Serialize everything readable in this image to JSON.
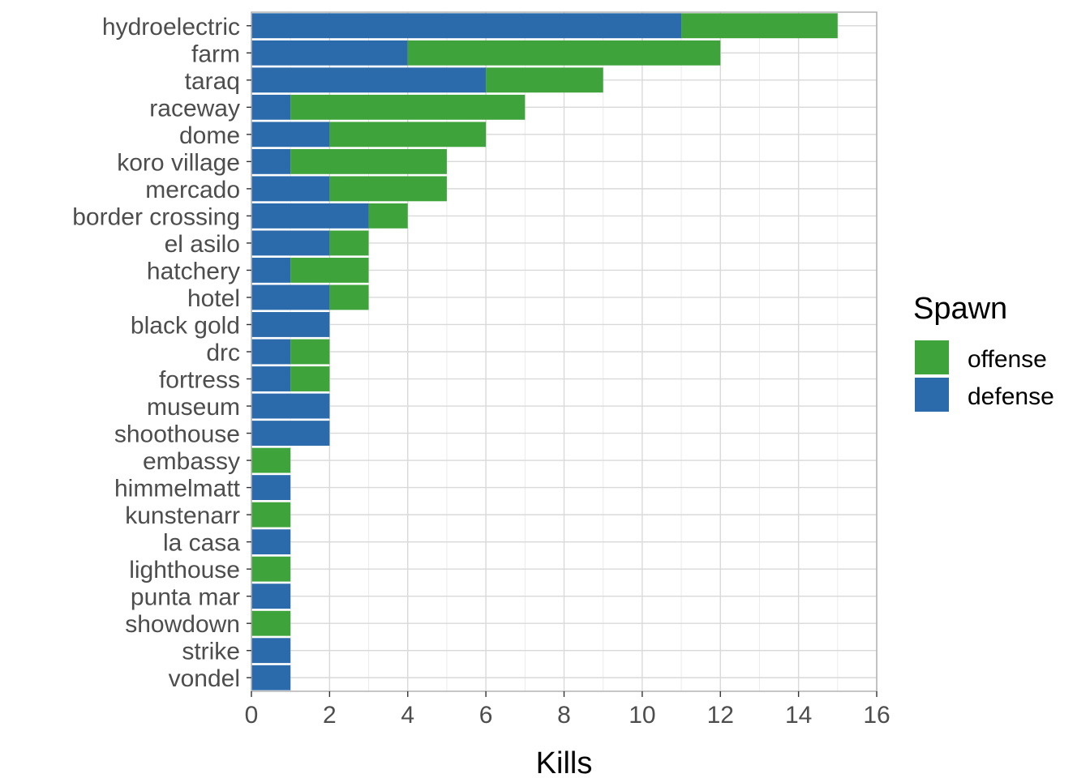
{
  "chart_data": {
    "type": "bar",
    "orientation": "horizontal",
    "stacked": true,
    "categories": [
      "hydroelectric",
      "farm",
      "taraq",
      "raceway",
      "dome",
      "koro village",
      "mercado",
      "border crossing",
      "el asilo",
      "hatchery",
      "hotel",
      "black gold",
      "drc",
      "fortress",
      "museum",
      "shoothouse",
      "embassy",
      "himmelmatt",
      "kunstenarr",
      "la casa",
      "lighthouse",
      "punta mar",
      "showdown",
      "strike",
      "vondel"
    ],
    "series": [
      {
        "name": "defense",
        "color": "#2b6aab",
        "values": [
          11,
          4,
          6,
          1,
          2,
          1,
          2,
          3,
          2,
          1,
          2,
          2,
          1,
          1,
          2,
          2,
          0,
          1,
          0,
          1,
          0,
          1,
          0,
          1,
          1
        ]
      },
      {
        "name": "offense",
        "color": "#3fa33b",
        "values": [
          4,
          8,
          3,
          6,
          4,
          4,
          3,
          1,
          1,
          2,
          1,
          0,
          1,
          1,
          0,
          0,
          1,
          0,
          1,
          0,
          1,
          0,
          1,
          0,
          0
        ]
      }
    ],
    "xlabel": "Kills",
    "ylabel": "",
    "xlim": [
      0,
      16
    ],
    "xticks": [
      0,
      2,
      4,
      6,
      8,
      10,
      12,
      14,
      16
    ],
    "grid": true,
    "legend": {
      "title": "Spawn",
      "position": "right",
      "entries": [
        {
          "label": "offense",
          "color": "#3fa33b"
        },
        {
          "label": "defense",
          "color": "#2b6aab"
        }
      ]
    }
  }
}
